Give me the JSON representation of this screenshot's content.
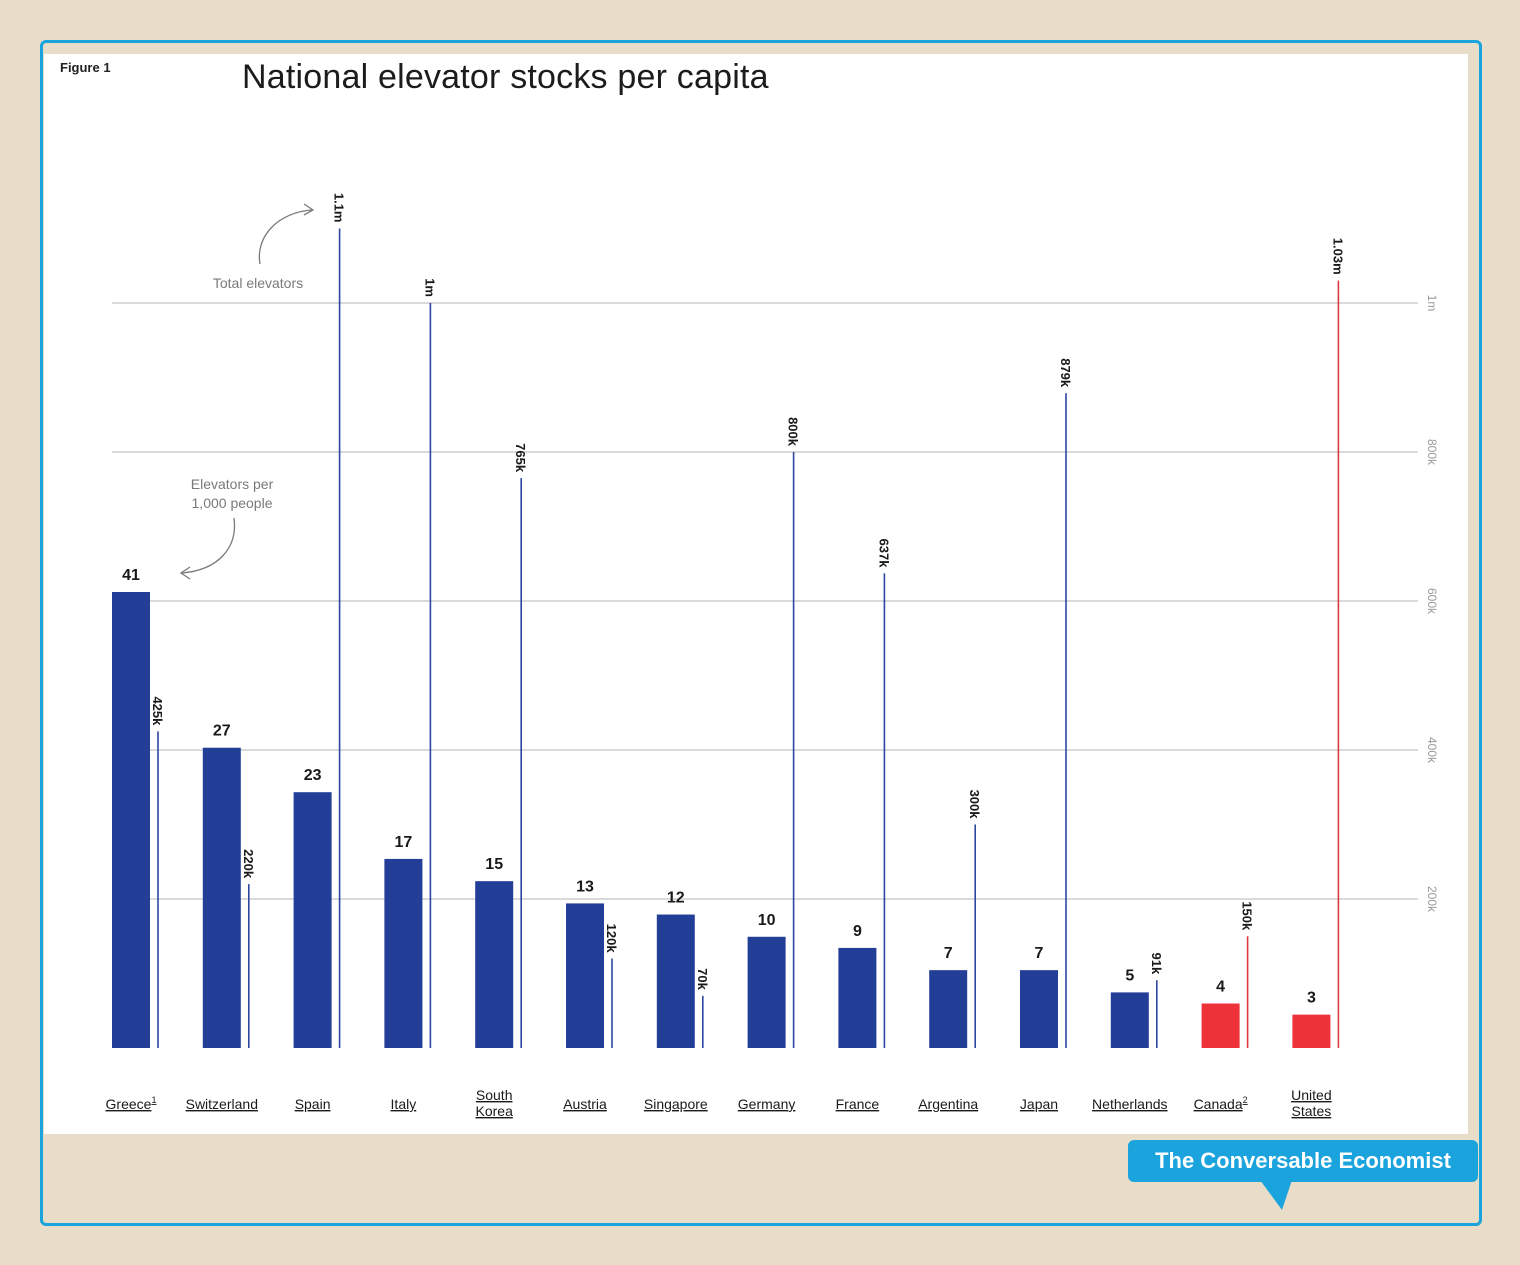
{
  "figure_label": "Figure 1",
  "brand": "The Conversable Economist",
  "colors": {
    "bar_blue": "#233e97",
    "bar_red": "#ee3239",
    "line_blue": "#2c47a0",
    "line_red": "#e0383e",
    "grid": "#b4b4b4",
    "brand_blue": "#1aa3dc"
  },
  "chart_data": {
    "type": "bar",
    "title": "National elevator stocks per capita",
    "categories": [
      {
        "name": "Greece",
        "sup": "1"
      },
      {
        "name": "Switzerland",
        "sup": ""
      },
      {
        "name": "Spain",
        "sup": ""
      },
      {
        "name": "Italy",
        "sup": ""
      },
      {
        "name": "South Korea",
        "sup": ""
      },
      {
        "name": "Austria",
        "sup": ""
      },
      {
        "name": "Singapore",
        "sup": ""
      },
      {
        "name": "Germany",
        "sup": ""
      },
      {
        "name": "France",
        "sup": ""
      },
      {
        "name": "Argentina",
        "sup": ""
      },
      {
        "name": "Japan",
        "sup": ""
      },
      {
        "name": "Netherlands",
        "sup": ""
      },
      {
        "name": "Canada",
        "sup": "2"
      },
      {
        "name": "United States",
        "sup": ""
      }
    ],
    "highlight": [
      false,
      false,
      false,
      false,
      false,
      false,
      false,
      false,
      false,
      false,
      false,
      false,
      true,
      true
    ],
    "series": [
      {
        "name": "Elevators per 1,000 people",
        "values": [
          41,
          27,
          23,
          17,
          15,
          13,
          12,
          10,
          9,
          7,
          7,
          5,
          4,
          3
        ],
        "labels": [
          "41",
          "27",
          "23",
          "17",
          "15",
          "13",
          "12",
          "10",
          "9",
          "7",
          "7",
          "5",
          "4",
          "3"
        ]
      },
      {
        "name": "Total elevators",
        "values": [
          425000,
          220000,
          1100000,
          1000000,
          765000,
          120000,
          70000,
          800000,
          637000,
          300000,
          879000,
          91000,
          150000,
          1030000
        ],
        "labels": [
          "425k",
          "220k",
          "1.1m",
          "1m",
          "765k",
          "120k",
          "70k",
          "800k",
          "637k",
          "300k",
          "879k",
          "91k",
          "150k",
          "1.03m"
        ]
      }
    ],
    "y_axis": {
      "ticks": [
        200000,
        400000,
        600000,
        800000,
        1000000
      ],
      "tick_labels": [
        "200k",
        "400k",
        "600k",
        "800k",
        "1m"
      ],
      "range": [
        0,
        1100000
      ]
    },
    "annotations": {
      "total": "Total elevators",
      "per_capita_line1": "Elevators per",
      "per_capita_line2": "1,000 people"
    }
  }
}
